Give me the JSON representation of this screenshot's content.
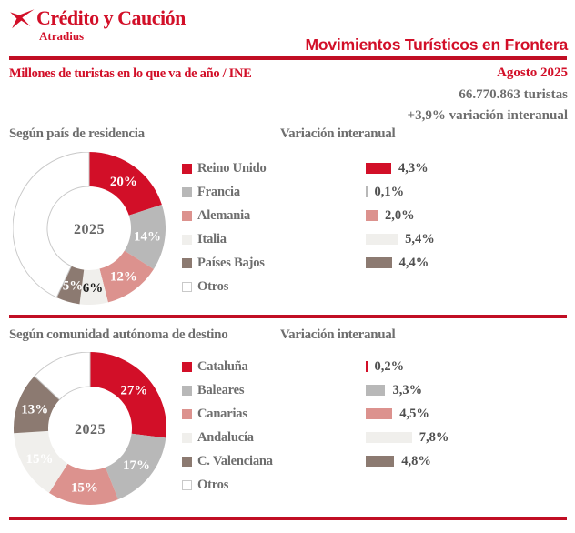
{
  "brand": {
    "logo_title": "Crédito y Caución",
    "logo_subtitle": "Atradius"
  },
  "header": {
    "title": "Movimientos Turísticos en Frontera",
    "tagline": "Millones de turistas en lo que va de año / INE",
    "period": "Agosto 2025",
    "total": "66.770.863 turistas",
    "variation": "+3,9% variación interanual"
  },
  "colors": {
    "red": "#d20f28",
    "gray": "#b8b8b8",
    "pink": "#dc928e",
    "light": "#f0efec",
    "brown": "#8c7a71",
    "white": "#ffffff",
    "outline": "#c9c9c9",
    "rule": "#c10e24",
    "heading_text": "#6e6e6e",
    "value_text": "#4f4f4f",
    "center_text": "#666666",
    "dark_label": "#1a1a1a"
  },
  "chart_data": [
    {
      "type": "pie",
      "donut": true,
      "title": "Según país de residencia",
      "center_label": "2025",
      "categories": [
        "Reino Unido",
        "Francia",
        "Alemania",
        "Italia",
        "Países Bajos",
        "Otros"
      ],
      "values": [
        20,
        14,
        12,
        6,
        5,
        43
      ],
      "slice_labels": [
        "20%",
        "14%",
        "12%",
        "6%",
        "5%",
        ""
      ],
      "slice_colors": [
        "red",
        "gray",
        "pink",
        "light",
        "brown",
        "white"
      ],
      "slice_label_dark": [
        false,
        false,
        false,
        true,
        false,
        false
      ],
      "variation": {
        "type": "bar",
        "title": "Variación interanual",
        "categories": [
          "Reino Unido",
          "Francia",
          "Alemania",
          "Italia",
          "Países Bajos"
        ],
        "values": [
          4.3,
          0.1,
          2.0,
          5.4,
          4.4
        ],
        "labels": [
          "4,3%",
          "0,1%",
          "2,0%",
          "5,4%",
          "4,4%"
        ],
        "unit": "%"
      }
    },
    {
      "type": "pie",
      "donut": true,
      "title": "Según comunidad autónoma de destino",
      "center_label": "2025",
      "categories": [
        "Cataluña",
        "Baleares",
        "Canarias",
        "Andalucía",
        "C. Valenciana",
        "Otros"
      ],
      "values": [
        27,
        17,
        15,
        15,
        13,
        13
      ],
      "slice_labels": [
        "27%",
        "17%",
        "15%",
        "15%",
        "13%",
        ""
      ],
      "slice_colors": [
        "red",
        "gray",
        "pink",
        "light",
        "brown",
        "white"
      ],
      "slice_label_dark": [
        false,
        false,
        false,
        false,
        false,
        false
      ],
      "variation": {
        "type": "bar",
        "title": "Variación interanual",
        "categories": [
          "Cataluña",
          "Baleares",
          "Canarias",
          "Andalucía",
          "C. Valenciana"
        ],
        "values": [
          0.2,
          3.3,
          4.5,
          7.8,
          4.8
        ],
        "labels": [
          "0,2%",
          "3,3%",
          "4,5%",
          "7,8%",
          "4,8%"
        ],
        "unit": "%"
      }
    }
  ]
}
